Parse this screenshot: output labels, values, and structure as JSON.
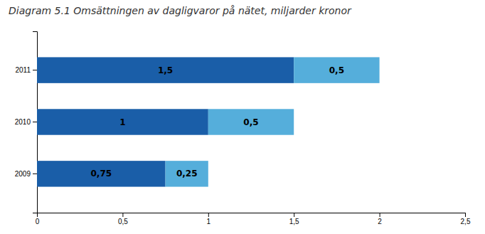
{
  "chart_data": {
    "type": "bar",
    "orientation": "horizontal",
    "stacked": true,
    "title": "Diagram 5.1 Omsättningen av dagligvaror på nätet, miljarder kronor",
    "categories": [
      "2009",
      "2010",
      "2011"
    ],
    "series": [
      {
        "color": "#1A5EA8",
        "values": [
          0.75,
          1.0,
          1.5
        ],
        "value_labels": [
          "0,75",
          "1",
          "1,5"
        ]
      },
      {
        "color": "#55AEDB",
        "values": [
          0.25,
          0.5,
          0.5
        ],
        "value_labels": [
          "0,25",
          "0,5",
          "0,5"
        ]
      }
    ],
    "xlim": [
      0,
      2.5
    ],
    "xticks": [
      0,
      {
        "value": 0.5,
        "label": "0,5"
      },
      1,
      {
        "value": 1.5,
        "label": "1,5"
      },
      2,
      {
        "value": 2.5,
        "label": "2,5"
      }
    ],
    "data_labels": true
  }
}
